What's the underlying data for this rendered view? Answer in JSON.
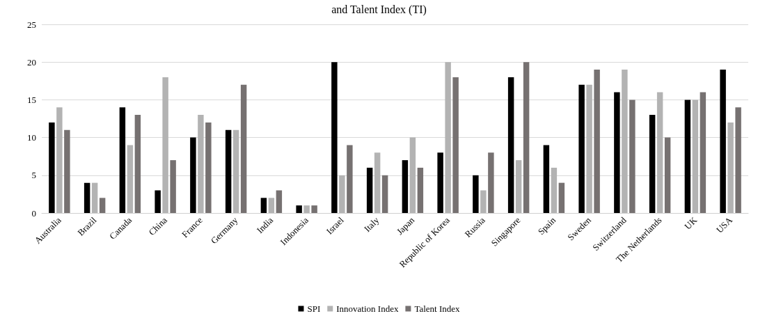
{
  "chart_data": {
    "type": "bar",
    "title": "and Talent Index (TI)",
    "categories": [
      "Australia",
      "Brazil",
      "Canada",
      "China",
      "France",
      "Germany",
      "India",
      "Indonesia",
      "Israel",
      "Italy",
      "Japan",
      "Republic of Korea",
      "Russia",
      "Singapore",
      "Spain",
      "Sweden",
      "Switzerland",
      "The Netherlands",
      "UK",
      "USA"
    ],
    "series": [
      {
        "name": "SPI",
        "color": "#000000",
        "values": [
          12,
          4,
          14,
          3,
          10,
          11,
          2,
          1,
          20,
          6,
          7,
          8,
          5,
          18,
          9,
          17,
          16,
          13,
          15,
          19
        ]
      },
      {
        "name": "Innovation Index",
        "color": "#b3b3b3",
        "values": [
          14,
          4,
          9,
          18,
          13,
          11,
          2,
          1,
          5,
          8,
          10,
          20,
          3,
          7,
          6,
          17,
          19,
          16,
          15,
          12
        ]
      },
      {
        "name": "Talent Index",
        "color": "#767171",
        "values": [
          11,
          2,
          13,
          7,
          12,
          17,
          3,
          1,
          9,
          5,
          6,
          18,
          8,
          20,
          4,
          19,
          15,
          10,
          16,
          14
        ]
      }
    ],
    "ylim": [
      0,
      25
    ],
    "yticks": [
      0,
      5,
      10,
      15,
      20,
      25
    ],
    "grid": "y",
    "legend": "bottom"
  }
}
